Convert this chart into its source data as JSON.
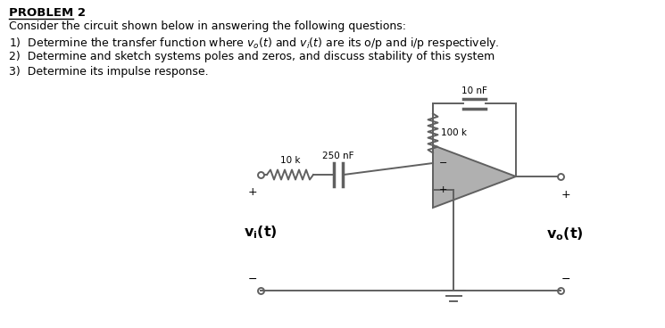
{
  "title": "PROBLEM 2",
  "line1": "Consider the circuit shown below in answering the following questions:",
  "line2": "1)  Determine the transfer function where $v_o(t)$ and $v_i(t)$ are its o/p and i/p respectively.",
  "line3": "2)  Determine and sketch systems poles and zeros, and discuss stability of this system",
  "line4": "3)  Determine its impulse response.",
  "bg_color": "#ffffff",
  "text_color": "#000000",
  "circuit_color": "#606060",
  "label_10nF": "10 nF",
  "label_100k": "100 k",
  "label_10k": "10 k",
  "label_250nF": "250 nF",
  "label_vi": "$\\mathbf{v_i(t)}$",
  "label_vo": "$\\mathbf{v_o(t)}$"
}
